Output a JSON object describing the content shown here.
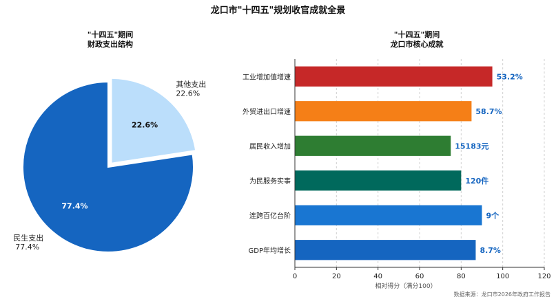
{
  "page": {
    "title": "龙口市\"十四五\"规划收官成就全景",
    "source": "数据来源：龙口市2026年政府工作报告"
  },
  "chart_data": [
    {
      "type": "pie",
      "title": [
        "\"十四五\"期间",
        "财政支出结构"
      ],
      "slices": [
        {
          "label": "其他支出",
          "value": 22.6,
          "display": "22.6%",
          "color": "#bbdefb",
          "exploded": true
        },
        {
          "label": "民生支出",
          "value": 77.4,
          "display": "77.4%",
          "color": "#1565c0",
          "exploded": false
        }
      ]
    },
    {
      "type": "bar",
      "orientation": "horizontal",
      "title": [
        "\"十四五\"期间",
        "龙口市核心成就"
      ],
      "xlabel": "相对得分（满分100）",
      "xlim": [
        0,
        120
      ],
      "xticks": [
        0,
        20,
        40,
        60,
        80,
        100,
        120
      ],
      "grid": "x-dashed",
      "bars": [
        {
          "category": "工业增加值增速",
          "value": 95,
          "label": "53.2%",
          "color": "#c62828"
        },
        {
          "category": "外贸进出口增速",
          "value": 85,
          "label": "58.7%",
          "color": "#f57f17"
        },
        {
          "category": "居民收入增加",
          "value": 75,
          "label": "15183元",
          "color": "#2e7d32"
        },
        {
          "category": "为民服务实事",
          "value": 80,
          "label": "120件",
          "color": "#00695c"
        },
        {
          "category": "连跨百亿台阶",
          "value": 90,
          "label": "9个",
          "color": "#1976d2"
        },
        {
          "category": "GDP年均增长",
          "value": 87,
          "label": "8.7%",
          "color": "#1565c0"
        }
      ]
    }
  ]
}
